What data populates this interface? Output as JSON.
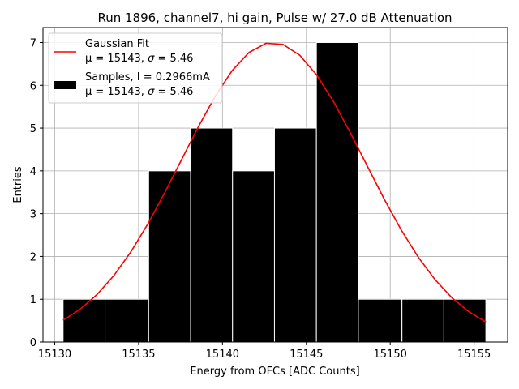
{
  "chart_data": {
    "type": "bar",
    "title": "Run 1896, channel7, hi gain, Pulse w/ 27.0 dB Attenuation",
    "xlabel": "Energy from OFCs [ADC Counts]",
    "ylabel": "Entries",
    "xlim": [
      15129.3,
      15157.0
    ],
    "ylim": [
      0,
      7.35
    ],
    "grid": true,
    "legend_position": "top-left",
    "x_ticks": [
      15130,
      15135,
      15140,
      15145,
      15150,
      15155
    ],
    "x_tick_labels": [
      "15130",
      "15135",
      "15140",
      "15145",
      "15150",
      "15155"
    ],
    "y_ticks": [
      0,
      1,
      2,
      3,
      4,
      5,
      6,
      7
    ],
    "y_tick_labels": [
      "0",
      "1",
      "2",
      "3",
      "4",
      "5",
      "6",
      "7"
    ],
    "histogram": {
      "color": "#000000",
      "edge_color": "#ffffff",
      "bins": [
        {
          "left": 15130.5,
          "right": 15133.0,
          "count": 1
        },
        {
          "left": 15133.0,
          "right": 15135.6,
          "count": 1
        },
        {
          "left": 15135.6,
          "right": 15138.1,
          "count": 4
        },
        {
          "left": 15138.1,
          "right": 15140.6,
          "count": 5
        },
        {
          "left": 15140.6,
          "right": 15143.1,
          "count": 4
        },
        {
          "left": 15143.1,
          "right": 15145.6,
          "count": 5
        },
        {
          "left": 15145.6,
          "right": 15148.1,
          "count": 7
        },
        {
          "left": 15148.1,
          "right": 15150.7,
          "count": 1
        },
        {
          "left": 15150.7,
          "right": 15153.2,
          "count": 1
        },
        {
          "left": 15153.2,
          "right": 15155.7,
          "count": 1
        }
      ]
    },
    "gaussian_fit": {
      "color": "#ff0000",
      "amplitude": 7.0,
      "mu": 15143,
      "sigma": 5.46,
      "x_start": 15130.5,
      "x_end": 15155.7,
      "points": 26
    },
    "legend": [
      {
        "kind": "line",
        "color": "#ff0000",
        "line1": "Gaussian Fit",
        "line2_prefix": "μ = 15143, ",
        "line2_sigma": "σ",
        "line2_suffix": " = 5.46"
      },
      {
        "kind": "patch",
        "color": "#000000",
        "line1": "Samples, I = 0.2966mA",
        "line2_prefix": "μ = 15143, ",
        "line2_sigma": "σ",
        "line2_suffix": " = 5.46"
      }
    ]
  }
}
